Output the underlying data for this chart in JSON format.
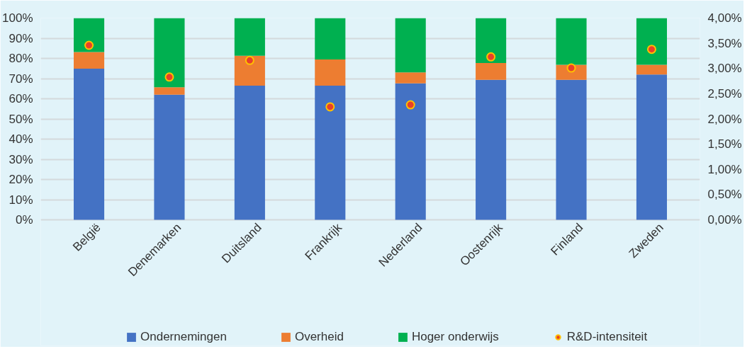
{
  "chart_data": {
    "type": "bar",
    "stacked": true,
    "categories": [
      "België",
      "Denemarken",
      "Duitsland",
      "Frankrijk",
      "Nederland",
      "Oostenrijk",
      "Finland",
      "Zweden"
    ],
    "series": [
      {
        "name": "Ondernemingen",
        "color": "#4472c4",
        "values": [
          74.9,
          62.0,
          66.5,
          66.5,
          67.6,
          69.4,
          69.4,
          72.0
        ]
      },
      {
        "name": "Overheid",
        "color": "#ed7d31",
        "values": [
          8.3,
          3.7,
          14.8,
          13.0,
          5.5,
          8.3,
          7.4,
          4.8
        ]
      },
      {
        "name": "Hoger onderwijs",
        "color": "#00b050",
        "values": [
          16.8,
          34.3,
          18.7,
          20.5,
          26.9,
          22.3,
          23.2,
          23.2
        ]
      },
      {
        "name": "R&D-intensiteit",
        "type": "scatter",
        "axis": "y2",
        "color": "#e8402a",
        "values": [
          3.46,
          2.83,
          3.16,
          2.24,
          2.28,
          3.23,
          3.01,
          3.38
        ]
      }
    ],
    "ylim": [
      0,
      100
    ],
    "yticks": [
      {
        "value": 0,
        "label": "0%"
      },
      {
        "value": 10,
        "label": "10%"
      },
      {
        "value": 20,
        "label": "20%"
      },
      {
        "value": 30,
        "label": "30%"
      },
      {
        "value": 40,
        "label": "40%"
      },
      {
        "value": 50,
        "label": "50%"
      },
      {
        "value": 60,
        "label": "60%"
      },
      {
        "value": 70,
        "label": "70%"
      },
      {
        "value": 80,
        "label": "80%"
      },
      {
        "value": 90,
        "label": "90%"
      },
      {
        "value": 100,
        "label": "100%"
      }
    ],
    "y2lim": [
      0,
      4
    ],
    "y2ticks": [
      {
        "value": 0,
        "label": "0,00%"
      },
      {
        "value": 0.5,
        "label": "0,50%"
      },
      {
        "value": 1,
        "label": "1,00%"
      },
      {
        "value": 1.5,
        "label": "1,50%"
      },
      {
        "value": 2,
        "label": "2,00%"
      },
      {
        "value": 2.5,
        "label": "2,50%"
      },
      {
        "value": 3,
        "label": "3,00%"
      },
      {
        "value": 3.5,
        "label": "3,50%"
      },
      {
        "value": 4,
        "label": "4,00%"
      }
    ],
    "grid": "y",
    "legend": "bottom",
    "marker": "circle"
  }
}
